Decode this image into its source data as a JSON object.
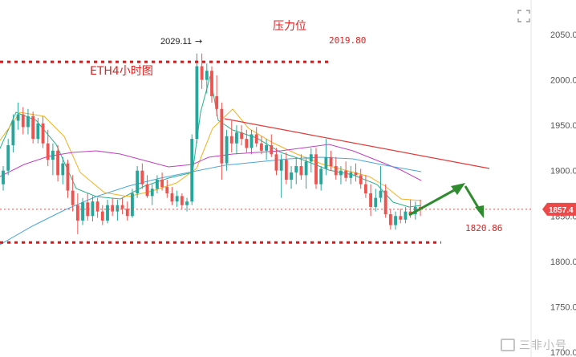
{
  "chart_data": {
    "type": "candlestick",
    "title": "ETH4小时图",
    "resistance_label": "压力位",
    "high_annotation": "2029.11",
    "resistance_level": "2019.80",
    "support_level": "1820.86",
    "current_price": "1857.4",
    "current_price_value": 1857.4,
    "ylim": [
      1700,
      2065
    ],
    "y_ticks": [
      "2050.0",
      "2000.0",
      "1950.0",
      "1900.0",
      "1850.0",
      "1800.0",
      "1750.0",
      "1700.0"
    ],
    "y_tick_values": [
      2050,
      2000,
      1950,
      1900,
      1850,
      1800,
      1750,
      1700
    ],
    "horizontal_levels": [
      2019.8,
      1820.86
    ],
    "trendline": {
      "from": [
        1948.0
      ],
      "to": [
        1897.0
      ]
    },
    "candles": [
      [
        1885,
        1905,
        1878,
        1900
      ],
      [
        1900,
        1935,
        1895,
        1928
      ],
      [
        1928,
        1962,
        1920,
        1955
      ],
      [
        1955,
        1975,
        1945,
        1962
      ],
      [
        1962,
        1970,
        1940,
        1948
      ],
      [
        1948,
        1968,
        1940,
        1960
      ],
      [
        1960,
        1965,
        1930,
        1935
      ],
      [
        1935,
        1958,
        1930,
        1952
      ],
      [
        1952,
        1960,
        1925,
        1930
      ],
      [
        1930,
        1945,
        1905,
        1912
      ],
      [
        1912,
        1930,
        1895,
        1922
      ],
      [
        1922,
        1928,
        1888,
        1895
      ],
      [
        1895,
        1915,
        1885,
        1908
      ],
      [
        1908,
        1912,
        1870,
        1878
      ],
      [
        1878,
        1895,
        1855,
        1862
      ],
      [
        1862,
        1875,
        1830,
        1845
      ],
      [
        1845,
        1870,
        1840,
        1865
      ],
      [
        1865,
        1875,
        1845,
        1850
      ],
      [
        1850,
        1872,
        1844,
        1866
      ],
      [
        1866,
        1870,
        1848,
        1855
      ],
      [
        1855,
        1862,
        1840,
        1845
      ],
      [
        1845,
        1868,
        1842,
        1862
      ],
      [
        1862,
        1870,
        1850,
        1855
      ],
      [
        1855,
        1868,
        1845,
        1862
      ],
      [
        1862,
        1870,
        1852,
        1858
      ],
      [
        1858,
        1866,
        1845,
        1850
      ],
      [
        1850,
        1880,
        1848,
        1875
      ],
      [
        1875,
        1905,
        1870,
        1900
      ],
      [
        1900,
        1908,
        1880,
        1885
      ],
      [
        1885,
        1895,
        1870,
        1872
      ],
      [
        1872,
        1885,
        1862,
        1880
      ],
      [
        1880,
        1895,
        1875,
        1890
      ],
      [
        1890,
        1898,
        1878,
        1882
      ],
      [
        1882,
        1890,
        1870,
        1875
      ],
      [
        1875,
        1882,
        1862,
        1866
      ],
      [
        1866,
        1878,
        1860,
        1872
      ],
      [
        1872,
        1875,
        1858,
        1862
      ],
      [
        1862,
        1870,
        1855,
        1866
      ],
      [
        1866,
        1940,
        1862,
        1935
      ],
      [
        1935,
        2029,
        1930,
        2015
      ],
      [
        2015,
        2029,
        1990,
        2000
      ],
      [
        2000,
        2018,
        1985,
        2010
      ],
      [
        2010,
        2015,
        1975,
        1982
      ],
      [
        1982,
        2005,
        1960,
        1968
      ],
      [
        1968,
        1975,
        1890,
        1908
      ],
      [
        1908,
        1945,
        1900,
        1938
      ],
      [
        1938,
        1955,
        1920,
        1930
      ],
      [
        1930,
        1950,
        1918,
        1942
      ],
      [
        1942,
        1950,
        1928,
        1935
      ],
      [
        1935,
        1945,
        1920,
        1925
      ],
      [
        1925,
        1945,
        1918,
        1940
      ],
      [
        1940,
        1948,
        1926,
        1930
      ],
      [
        1930,
        1938,
        1918,
        1922
      ],
      [
        1922,
        1935,
        1912,
        1928
      ],
      [
        1928,
        1940,
        1915,
        1918
      ],
      [
        1918,
        1925,
        1895,
        1900
      ],
      [
        1900,
        1918,
        1870,
        1912
      ],
      [
        1912,
        1920,
        1885,
        1890
      ],
      [
        1890,
        1905,
        1880,
        1898
      ],
      [
        1898,
        1915,
        1885,
        1905
      ],
      [
        1905,
        1918,
        1890,
        1895
      ],
      [
        1895,
        1915,
        1880,
        1910
      ],
      [
        1910,
        1925,
        1898,
        1918
      ],
      [
        1918,
        1925,
        1880,
        1885
      ],
      [
        1885,
        1905,
        1878,
        1902
      ],
      [
        1902,
        1935,
        1895,
        1915
      ],
      [
        1915,
        1922,
        1900,
        1905
      ],
      [
        1905,
        1915,
        1890,
        1895
      ],
      [
        1895,
        1905,
        1885,
        1900
      ],
      [
        1900,
        1910,
        1888,
        1892
      ],
      [
        1892,
        1905,
        1885,
        1898
      ],
      [
        1898,
        1908,
        1888,
        1895
      ],
      [
        1895,
        1902,
        1880,
        1885
      ],
      [
        1885,
        1895,
        1870,
        1875
      ],
      [
        1875,
        1885,
        1850,
        1860
      ],
      [
        1860,
        1880,
        1855,
        1870
      ],
      [
        1870,
        1905,
        1865,
        1878
      ],
      [
        1878,
        1885,
        1848,
        1852
      ],
      [
        1852,
        1858,
        1835,
        1840
      ],
      [
        1840,
        1855,
        1835,
        1850
      ],
      [
        1850,
        1858,
        1842,
        1846
      ],
      [
        1846,
        1860,
        1842,
        1855
      ],
      [
        1855,
        1868,
        1848,
        1852
      ],
      [
        1852,
        1866,
        1846,
        1860
      ],
      [
        1860,
        1868,
        1850,
        1857
      ]
    ]
  }
}
